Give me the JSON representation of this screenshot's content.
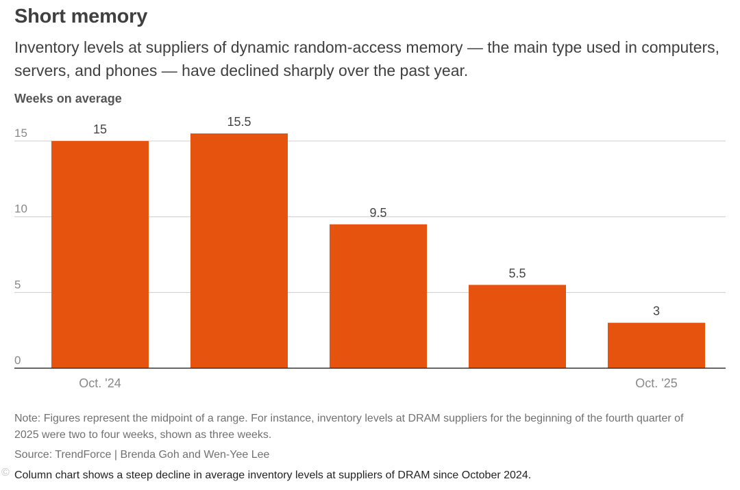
{
  "title": "Short memory",
  "subtitle": "Inventory levels at suppliers of dynamic random-access memory — the main type used in computers, servers, and phones — have declined sharply over the past year.",
  "units_label": "Weeks on average",
  "note": "Note: Figures represent the midpoint of a range. For instance, inventory levels at DRAM suppliers for the beginning of the fourth quarter of 2025 were two to four weeks, shown as three weeks.",
  "source": "Source: TrendForce | Brenda Goh and Wen-Yee Lee",
  "alt_text": "Column chart shows a steep decline in average inventory levels at suppliers of DRAM since October 2024.",
  "watermark": "©",
  "colors": {
    "bar": "#e5530f",
    "grid": "#cccccc",
    "axis": "#333333",
    "label": "#444444",
    "tick": "#888888"
  },
  "chart_data": {
    "type": "bar",
    "categories": [
      "Oct. '24",
      "",
      "",
      "",
      "Oct. '25"
    ],
    "values": [
      15,
      15.5,
      9.5,
      5.5,
      3
    ],
    "value_labels": [
      "15",
      "15.5",
      "9.5",
      "5.5",
      "3"
    ],
    "ylabel": "Weeks on average",
    "ylim": [
      0,
      15
    ],
    "yticks": [
      0,
      5,
      10,
      15
    ],
    "grid": true,
    "legend": "none"
  }
}
